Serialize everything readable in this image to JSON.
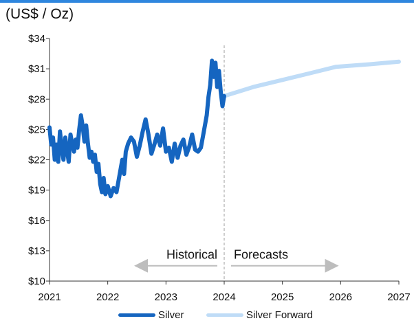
{
  "unit_label": "(US$ / Oz)",
  "colors": {
    "silver": "#1565c0",
    "forward": "#bfdcf7",
    "arrow": "#bdbdbd",
    "divider": "#9e9e9e",
    "accent": "#2e86de"
  },
  "annotations": {
    "historical": "Historical",
    "forecasts": "Forecasts"
  },
  "legend": {
    "silver_label": "Silver",
    "forward_label": "Silver Forward"
  },
  "chart_data": {
    "type": "line",
    "ylim": [
      10,
      34
    ],
    "yticks": [
      10,
      13,
      16,
      19,
      22,
      25,
      28,
      31,
      34
    ],
    "ytick_labels": [
      "$10",
      "$13",
      "$16",
      "$19",
      "$22",
      "$25",
      "$28",
      "$31",
      "$34"
    ],
    "xlim": [
      2021,
      2027
    ],
    "xticks": [
      2021,
      2022,
      2023,
      2024,
      2025,
      2026,
      2027
    ],
    "xtick_labels": [
      "2021",
      "2022",
      "2023",
      "2024",
      "2025",
      "2026",
      "2027"
    ],
    "forecast_start": 2024,
    "series": [
      {
        "name": "Silver",
        "x": [
          2021.0,
          2021.03,
          2021.06,
          2021.09,
          2021.12,
          2021.15,
          2021.18,
          2021.21,
          2021.24,
          2021.27,
          2021.3,
          2021.33,
          2021.36,
          2021.39,
          2021.42,
          2021.45,
          2021.48,
          2021.51,
          2021.54,
          2021.57,
          2021.6,
          2021.63,
          2021.66,
          2021.69,
          2021.72,
          2021.75,
          2021.78,
          2021.81,
          2021.84,
          2021.87,
          2021.9,
          2021.93,
          2021.96,
          2022.0,
          2022.05,
          2022.1,
          2022.15,
          2022.2,
          2022.25,
          2022.28,
          2022.31,
          2022.35,
          2022.4,
          2022.45,
          2022.5,
          2022.55,
          2022.6,
          2022.65,
          2022.7,
          2022.75,
          2022.8,
          2022.85,
          2022.9,
          2022.95,
          2023.0,
          2023.05,
          2023.1,
          2023.15,
          2023.2,
          2023.25,
          2023.3,
          2023.35,
          2023.4,
          2023.45,
          2023.5,
          2023.55,
          2023.6,
          2023.65,
          2023.7,
          2023.73,
          2023.76,
          2023.79,
          2023.82,
          2023.85,
          2023.88,
          2023.91,
          2023.94,
          2023.97,
          2024.0
        ],
        "values": [
          25.2,
          23.5,
          24.2,
          22.0,
          23.5,
          21.8,
          24.8,
          23.2,
          22.0,
          24.2,
          23.0,
          21.8,
          24.5,
          23.6,
          22.8,
          24.0,
          23.2,
          25.0,
          26.4,
          25.3,
          23.8,
          25.4,
          23.6,
          22.2,
          22.8,
          21.8,
          22.5,
          20.8,
          21.6,
          19.6,
          18.8,
          20.2,
          18.6,
          19.4,
          18.4,
          19.2,
          18.8,
          20.4,
          22.0,
          20.6,
          22.8,
          23.6,
          24.2,
          23.8,
          22.3,
          23.4,
          24.8,
          26.0,
          24.5,
          22.6,
          23.5,
          24.5,
          23.4,
          25.1,
          22.8,
          23.2,
          21.8,
          23.6,
          22.2,
          23.4,
          24.0,
          22.5,
          23.3,
          24.5,
          23.0,
          22.8,
          23.2,
          24.8,
          26.4,
          28.2,
          29.4,
          31.8,
          30.2,
          31.6,
          29.2,
          30.8,
          28.8,
          27.3,
          28.3
        ]
      },
      {
        "name": "Silver Forward",
        "x": [
          2024.0,
          2024.5,
          2025.0,
          2025.5,
          2025.92,
          2026.5,
          2027.0
        ],
        "values": [
          28.3,
          29.2,
          29.9,
          30.6,
          31.2,
          31.45,
          31.7
        ]
      }
    ]
  }
}
